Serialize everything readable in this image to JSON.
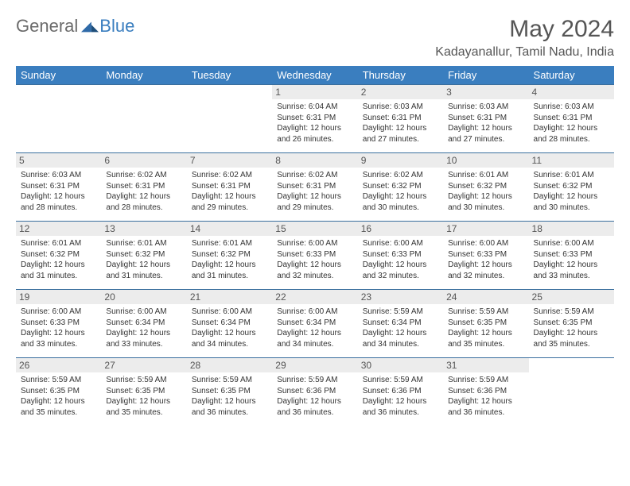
{
  "brand": {
    "general": "General",
    "blue": "Blue"
  },
  "title": "May 2024",
  "location": "Kadayanallur, Tamil Nadu, India",
  "colors": {
    "header_bg": "#3a7ebf",
    "header_fg": "#ffffff",
    "daynum_bg": "#ececec",
    "rule": "#3a6f9e",
    "text": "#333333",
    "title_color": "#555555"
  },
  "weekdays": [
    "Sunday",
    "Monday",
    "Tuesday",
    "Wednesday",
    "Thursday",
    "Friday",
    "Saturday"
  ],
  "first_weekday_index": 3,
  "days": [
    {
      "n": "1",
      "sr": "6:04 AM",
      "ss": "6:31 PM",
      "dl": "12 hours and 26 minutes."
    },
    {
      "n": "2",
      "sr": "6:03 AM",
      "ss": "6:31 PM",
      "dl": "12 hours and 27 minutes."
    },
    {
      "n": "3",
      "sr": "6:03 AM",
      "ss": "6:31 PM",
      "dl": "12 hours and 27 minutes."
    },
    {
      "n": "4",
      "sr": "6:03 AM",
      "ss": "6:31 PM",
      "dl": "12 hours and 28 minutes."
    },
    {
      "n": "5",
      "sr": "6:03 AM",
      "ss": "6:31 PM",
      "dl": "12 hours and 28 minutes."
    },
    {
      "n": "6",
      "sr": "6:02 AM",
      "ss": "6:31 PM",
      "dl": "12 hours and 28 minutes."
    },
    {
      "n": "7",
      "sr": "6:02 AM",
      "ss": "6:31 PM",
      "dl": "12 hours and 29 minutes."
    },
    {
      "n": "8",
      "sr": "6:02 AM",
      "ss": "6:31 PM",
      "dl": "12 hours and 29 minutes."
    },
    {
      "n": "9",
      "sr": "6:02 AM",
      "ss": "6:32 PM",
      "dl": "12 hours and 30 minutes."
    },
    {
      "n": "10",
      "sr": "6:01 AM",
      "ss": "6:32 PM",
      "dl": "12 hours and 30 minutes."
    },
    {
      "n": "11",
      "sr": "6:01 AM",
      "ss": "6:32 PM",
      "dl": "12 hours and 30 minutes."
    },
    {
      "n": "12",
      "sr": "6:01 AM",
      "ss": "6:32 PM",
      "dl": "12 hours and 31 minutes."
    },
    {
      "n": "13",
      "sr": "6:01 AM",
      "ss": "6:32 PM",
      "dl": "12 hours and 31 minutes."
    },
    {
      "n": "14",
      "sr": "6:01 AM",
      "ss": "6:32 PM",
      "dl": "12 hours and 31 minutes."
    },
    {
      "n": "15",
      "sr": "6:00 AM",
      "ss": "6:33 PM",
      "dl": "12 hours and 32 minutes."
    },
    {
      "n": "16",
      "sr": "6:00 AM",
      "ss": "6:33 PM",
      "dl": "12 hours and 32 minutes."
    },
    {
      "n": "17",
      "sr": "6:00 AM",
      "ss": "6:33 PM",
      "dl": "12 hours and 32 minutes."
    },
    {
      "n": "18",
      "sr": "6:00 AM",
      "ss": "6:33 PM",
      "dl": "12 hours and 33 minutes."
    },
    {
      "n": "19",
      "sr": "6:00 AM",
      "ss": "6:33 PM",
      "dl": "12 hours and 33 minutes."
    },
    {
      "n": "20",
      "sr": "6:00 AM",
      "ss": "6:34 PM",
      "dl": "12 hours and 33 minutes."
    },
    {
      "n": "21",
      "sr": "6:00 AM",
      "ss": "6:34 PM",
      "dl": "12 hours and 34 minutes."
    },
    {
      "n": "22",
      "sr": "6:00 AM",
      "ss": "6:34 PM",
      "dl": "12 hours and 34 minutes."
    },
    {
      "n": "23",
      "sr": "5:59 AM",
      "ss": "6:34 PM",
      "dl": "12 hours and 34 minutes."
    },
    {
      "n": "24",
      "sr": "5:59 AM",
      "ss": "6:35 PM",
      "dl": "12 hours and 35 minutes."
    },
    {
      "n": "25",
      "sr": "5:59 AM",
      "ss": "6:35 PM",
      "dl": "12 hours and 35 minutes."
    },
    {
      "n": "26",
      "sr": "5:59 AM",
      "ss": "6:35 PM",
      "dl": "12 hours and 35 minutes."
    },
    {
      "n": "27",
      "sr": "5:59 AM",
      "ss": "6:35 PM",
      "dl": "12 hours and 35 minutes."
    },
    {
      "n": "28",
      "sr": "5:59 AM",
      "ss": "6:35 PM",
      "dl": "12 hours and 36 minutes."
    },
    {
      "n": "29",
      "sr": "5:59 AM",
      "ss": "6:36 PM",
      "dl": "12 hours and 36 minutes."
    },
    {
      "n": "30",
      "sr": "5:59 AM",
      "ss": "6:36 PM",
      "dl": "12 hours and 36 minutes."
    },
    {
      "n": "31",
      "sr": "5:59 AM",
      "ss": "6:36 PM",
      "dl": "12 hours and 36 minutes."
    }
  ],
  "labels": {
    "sunrise": "Sunrise: ",
    "sunset": "Sunset: ",
    "daylight": "Daylight: "
  }
}
